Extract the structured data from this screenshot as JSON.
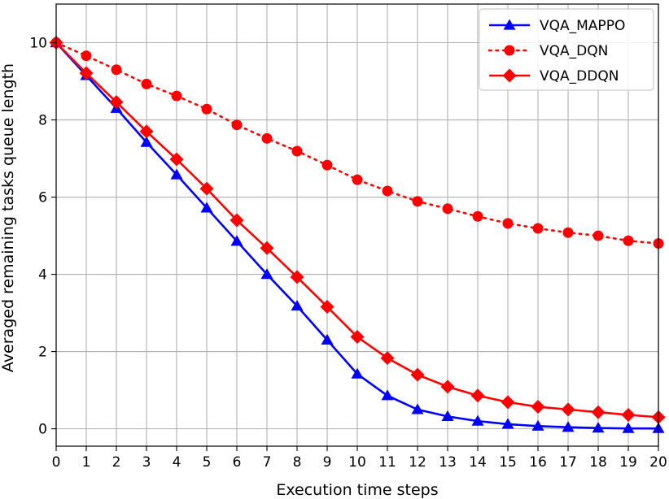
{
  "chart_data": {
    "type": "line",
    "title": "",
    "xlabel": "Execution time steps",
    "ylabel": "Averaged remaining tasks queue length",
    "xlim": [
      0,
      20
    ],
    "ylim": [
      -0.45,
      11.0
    ],
    "x_ticks": [
      0,
      1,
      2,
      3,
      4,
      5,
      6,
      7,
      8,
      9,
      10,
      11,
      12,
      13,
      14,
      15,
      16,
      17,
      18,
      19,
      20
    ],
    "y_ticks": [
      0,
      2,
      4,
      6,
      8,
      10
    ],
    "grid": true,
    "legend_position": "top-right",
    "x": [
      0,
      1,
      2,
      3,
      4,
      5,
      6,
      7,
      8,
      9,
      10,
      11,
      12,
      13,
      14,
      15,
      16,
      17,
      18,
      19,
      20
    ],
    "series": [
      {
        "name": "VQA_MAPPO",
        "color": "#0000ff",
        "line_style": "solid",
        "marker": "triangle",
        "values": [
          10.0,
          9.15,
          8.3,
          7.42,
          6.58,
          5.72,
          4.86,
          4.0,
          3.18,
          2.3,
          1.42,
          0.86,
          0.5,
          0.32,
          0.2,
          0.12,
          0.07,
          0.04,
          0.02,
          0.01,
          0.01
        ]
      },
      {
        "name": "VQA_DQN",
        "color": "#ff0000",
        "line_style": "dotted",
        "marker": "circle",
        "values": [
          10.0,
          9.66,
          9.3,
          8.93,
          8.62,
          8.28,
          7.87,
          7.52,
          7.19,
          6.83,
          6.45,
          6.16,
          5.89,
          5.7,
          5.5,
          5.32,
          5.19,
          5.08,
          5.0,
          4.87,
          4.8
        ]
      },
      {
        "name": "VQA_DDQN",
        "color": "#ff0000",
        "line_style": "solid",
        "marker": "diamond",
        "values": [
          10.0,
          9.21,
          8.46,
          7.7,
          6.98,
          6.22,
          5.4,
          4.68,
          3.93,
          3.16,
          2.38,
          1.83,
          1.4,
          1.09,
          0.86,
          0.69,
          0.57,
          0.5,
          0.43,
          0.36,
          0.3
        ]
      }
    ]
  }
}
